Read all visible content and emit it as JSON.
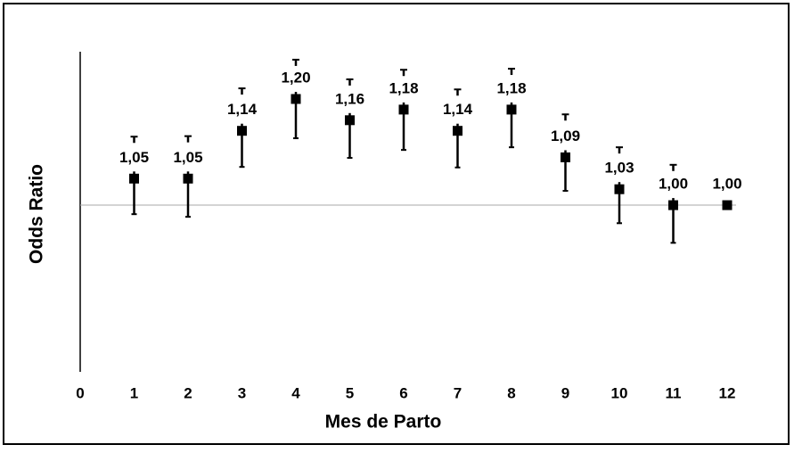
{
  "chart_data": {
    "type": "errorbar",
    "x_label": "Mes de Parto",
    "y_label": "Odds Ratio",
    "x": [
      1,
      2,
      3,
      4,
      5,
      6,
      7,
      8,
      9,
      10,
      11,
      12
    ],
    "values": [
      1.05,
      1.05,
      1.14,
      1.2,
      1.16,
      1.18,
      1.14,
      1.18,
      1.09,
      1.03,
      1.0,
      1.0
    ],
    "value_labels": [
      "1,05",
      "1,05",
      "1,14",
      "1,20",
      "1,16",
      "1,18",
      "1,14",
      "1,18",
      "1,09",
      "1,03",
      "1,00",
      "1,00"
    ],
    "ci_lower": [
      0.983,
      0.978,
      1.072,
      1.126,
      1.089,
      1.104,
      1.071,
      1.109,
      1.027,
      0.966,
      0.929,
      null
    ],
    "ci_upper": [
      1.129,
      1.13,
      1.22,
      1.274,
      1.237,
      1.255,
      1.218,
      1.257,
      1.171,
      1.109,
      1.076,
      null
    ],
    "reference_line": 1,
    "color": "#000000",
    "xlim": [
      0,
      12
    ],
    "xticks": [
      0,
      1,
      2,
      3,
      4,
      5,
      6,
      7,
      8,
      9,
      10,
      11,
      12
    ],
    "ylim": [
      0.686,
      1.289
    ]
  }
}
